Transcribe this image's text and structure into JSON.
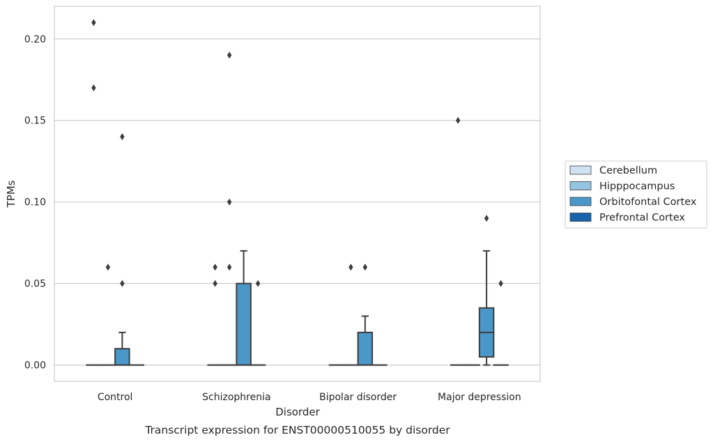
{
  "chart_data": {
    "type": "box",
    "caption": "Transcript expression for ENST00000510055 by disorder",
    "xlabel": "Disorder",
    "ylabel": "TPMs",
    "ylim": [
      -0.01,
      0.22
    ],
    "yticks": [
      0.0,
      0.05,
      0.1,
      0.15,
      0.2
    ],
    "ytick_labels": [
      "0.00",
      "0.05",
      "0.10",
      "0.15",
      "0.20"
    ],
    "grid": "horizontal",
    "legend_position": "right",
    "categories": [
      "Control",
      "Schizophrenia",
      "Bipolar disorder",
      "Major depression"
    ],
    "series": [
      {
        "name": "Cerebellum",
        "color": "#d0e1f2",
        "boxes": [
          {
            "q1": 0,
            "median": 0,
            "q3": 0,
            "whisker_low": 0,
            "whisker_high": 0,
            "outliers": [
              0.21,
              0.17
            ]
          },
          {
            "q1": 0,
            "median": 0,
            "q3": 0,
            "whisker_low": 0,
            "whisker_high": 0,
            "outliers": [
              0.06,
              0.05
            ]
          },
          {
            "q1": 0,
            "median": 0,
            "q3": 0,
            "whisker_low": 0,
            "whisker_high": 0,
            "outliers": []
          },
          {
            "q1": 0,
            "median": 0,
            "q3": 0,
            "whisker_low": 0,
            "whisker_high": 0,
            "outliers": [
              0.15
            ]
          }
        ]
      },
      {
        "name": "Hipppocampus",
        "color": "#94c4df",
        "boxes": [
          {
            "q1": 0,
            "median": 0,
            "q3": 0,
            "whisker_low": 0,
            "whisker_high": 0,
            "outliers": [
              0.06
            ]
          },
          {
            "q1": 0,
            "median": 0,
            "q3": 0,
            "whisker_low": 0,
            "whisker_high": 0,
            "outliers": [
              0.19,
              0.1,
              0.06
            ]
          },
          {
            "q1": 0,
            "median": 0,
            "q3": 0,
            "whisker_low": 0,
            "whisker_high": 0,
            "outliers": [
              0.06
            ]
          },
          {
            "q1": 0,
            "median": 0,
            "q3": 0,
            "whisker_low": 0,
            "whisker_high": 0,
            "outliers": []
          }
        ]
      },
      {
        "name": "Orbitofontal Cortex",
        "color": "#4a98c9",
        "boxes": [
          {
            "q1": 0,
            "median": 0,
            "q3": 0.01,
            "whisker_low": 0,
            "whisker_high": 0.02,
            "outliers": [
              0.14,
              0.05
            ]
          },
          {
            "q1": 0,
            "median": 0,
            "q3": 0.05,
            "whisker_low": 0,
            "whisker_high": 0.07,
            "outliers": []
          },
          {
            "q1": 0,
            "median": 0,
            "q3": 0.02,
            "whisker_low": 0,
            "whisker_high": 0.03,
            "outliers": [
              0.06
            ]
          },
          {
            "q1": 0.005,
            "median": 0.02,
            "q3": 0.035,
            "whisker_low": 0,
            "whisker_high": 0.07,
            "outliers": [
              0.09
            ]
          }
        ]
      },
      {
        "name": "Prefrontal Cortex",
        "color": "#1764ab",
        "boxes": [
          {
            "q1": 0,
            "median": 0,
            "q3": 0,
            "whisker_low": 0,
            "whisker_high": 0,
            "outliers": []
          },
          {
            "q1": 0,
            "median": 0,
            "q3": 0,
            "whisker_low": 0,
            "whisker_high": 0,
            "outliers": [
              0.05
            ]
          },
          {
            "q1": 0,
            "median": 0,
            "q3": 0,
            "whisker_low": 0,
            "whisker_high": 0,
            "outliers": []
          },
          {
            "q1": 0,
            "median": 0,
            "q3": 0,
            "whisker_low": 0,
            "whisker_high": 0,
            "outliers": [
              0.05
            ]
          }
        ]
      }
    ]
  }
}
